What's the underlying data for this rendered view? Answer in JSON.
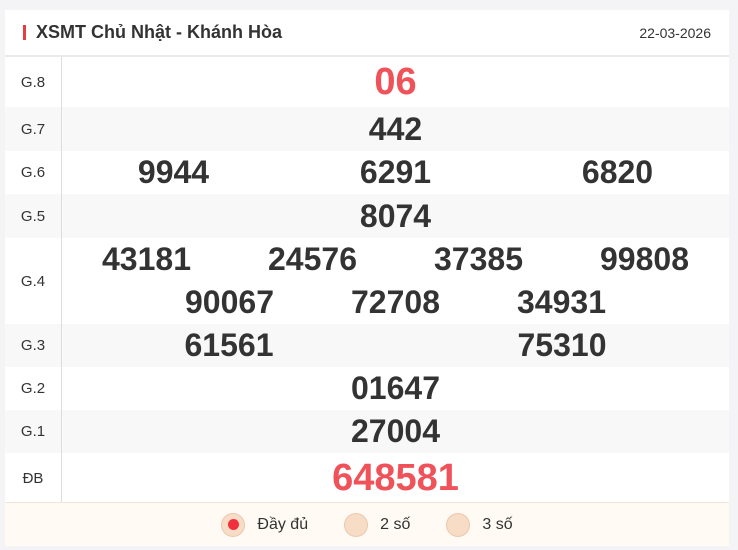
{
  "header": {
    "title": "XSMT Chủ Nhật - Khánh Hòa",
    "date": "22-03-2026"
  },
  "prizes": [
    {
      "label": "G.8",
      "numbers": [
        "06"
      ]
    },
    {
      "label": "G.7",
      "numbers": [
        "442"
      ]
    },
    {
      "label": "G.6",
      "numbers": [
        "9944",
        "6291",
        "6820"
      ]
    },
    {
      "label": "G.5",
      "numbers": [
        "8074"
      ]
    },
    {
      "label": "G.4",
      "numbers": [
        "43181",
        "24576",
        "37385",
        "99808",
        "90067",
        "72708",
        "34931"
      ]
    },
    {
      "label": "G.3",
      "numbers": [
        "61561",
        "75310"
      ]
    },
    {
      "label": "G.2",
      "numbers": [
        "01647"
      ]
    },
    {
      "label": "G.1",
      "numbers": [
        "27004"
      ]
    },
    {
      "label": "ĐB",
      "numbers": [
        "648581"
      ]
    }
  ],
  "footer": {
    "options": [
      {
        "label": "Đầy đủ",
        "selected": true
      },
      {
        "label": "2 số",
        "selected": false
      },
      {
        "label": "3 số",
        "selected": false
      }
    ]
  },
  "colors": {
    "accent": "#f0525a",
    "text": "#333333"
  }
}
